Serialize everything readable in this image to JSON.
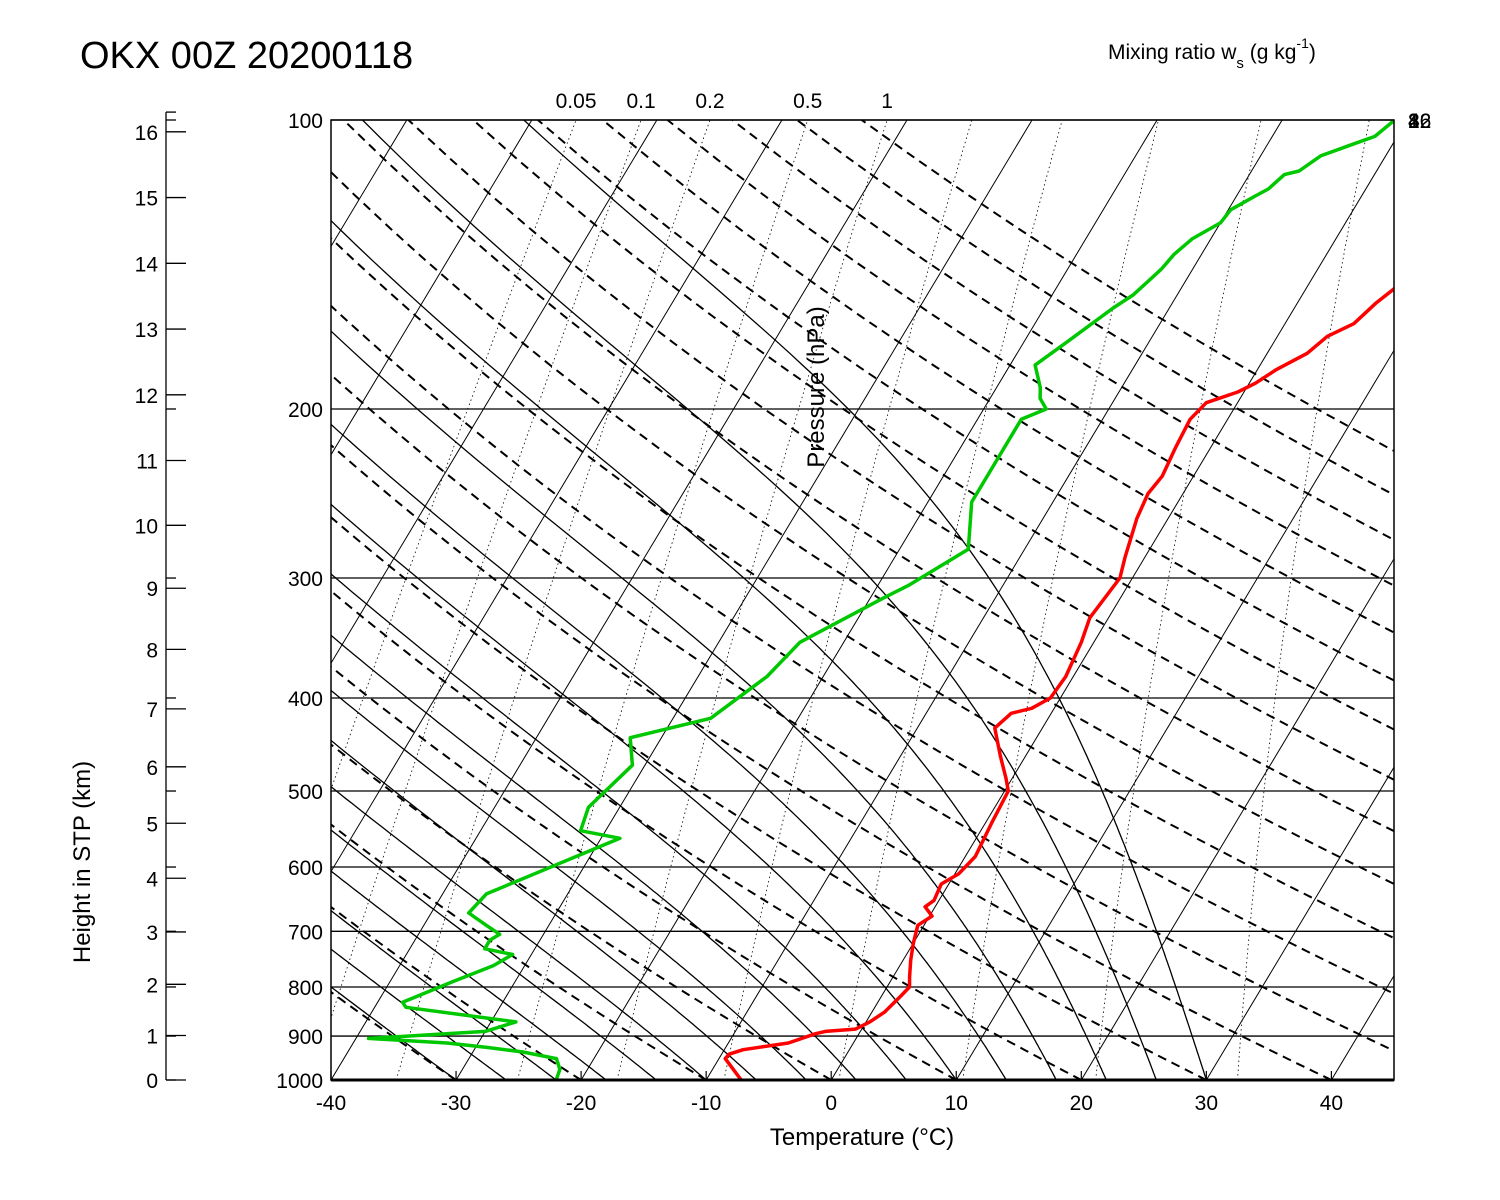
{
  "chart_data": {
    "type": "line",
    "title": "OKX 00Z 20200118",
    "xlabel": "Temperature (°C)",
    "ylabel": "Pressure (hPa)",
    "y2label": "Height in STP (km)",
    "top_label_prefix": "Mixing ratio w",
    "top_label_sub": "s",
    "top_label_mid": " (g kg",
    "top_label_sup": "-1",
    "top_label_end": ")",
    "xlim": [
      -40,
      45
    ],
    "ylim": [
      1000,
      100
    ],
    "x_ticks": [
      "-40",
      "-30",
      "-20",
      "-10",
      "0",
      "10",
      "20",
      "30",
      "40"
    ],
    "pressure_ticks": [
      "100",
      "200",
      "300",
      "400",
      "500",
      "600",
      "700",
      "800",
      "900",
      "1000"
    ],
    "height_ticks": [
      "0",
      "1",
      "2",
      "3",
      "4",
      "5",
      "6",
      "7",
      "8",
      "9",
      "10",
      "11",
      "12",
      "13",
      "14",
      "15",
      "16"
    ],
    "mixing_ratio_top_labels": [
      "0.05",
      "0.1",
      "0.2",
      "0.5",
      "1"
    ],
    "mixing_ratio_right_labels": [
      "2",
      "4",
      "8",
      "16",
      "32"
    ],
    "series": [
      {
        "name": "",
        "color": "#ff0000",
        "points": [
          [
            -7.2,
            1000
          ],
          [
            -8.8,
            965
          ],
          [
            -9.5,
            950
          ],
          [
            -9.4,
            940
          ],
          [
            -8.5,
            930
          ],
          [
            -5.2,
            915
          ],
          [
            -3.5,
            895
          ],
          [
            -2.8,
            890
          ],
          [
            -0.5,
            885
          ],
          [
            0.3,
            870
          ],
          [
            1.0,
            850
          ],
          [
            1.5,
            820
          ],
          [
            1.8,
            800
          ],
          [
            1.3,
            780
          ],
          [
            0.6,
            750
          ],
          [
            0.0,
            720
          ],
          [
            -0.5,
            690
          ],
          [
            0.2,
            675
          ],
          [
            -0.8,
            660
          ],
          [
            -0.4,
            650
          ],
          [
            -0.6,
            625
          ],
          [
            0.3,
            610
          ],
          [
            0.8,
            585
          ],
          [
            0.5,
            540
          ],
          [
            0.3,
            500
          ],
          [
            -0.5,
            485
          ],
          [
            -2.0,
            460
          ],
          [
            -3.8,
            430
          ],
          [
            -3.2,
            415
          ],
          [
            -1.8,
            410
          ],
          [
            -0.8,
            400
          ],
          [
            -0.6,
            380
          ],
          [
            -1.0,
            350
          ],
          [
            -1.5,
            330
          ],
          [
            -1.0,
            300
          ],
          [
            -1.6,
            285
          ],
          [
            -2.5,
            260
          ],
          [
            -2.8,
            245
          ],
          [
            -2.5,
            235
          ],
          [
            -2.8,
            220
          ],
          [
            -3.0,
            205
          ],
          [
            -2.5,
            197
          ],
          [
            -0.5,
            192
          ],
          [
            0.5,
            188
          ],
          [
            1.5,
            182
          ],
          [
            3.2,
            175
          ],
          [
            4.0,
            168
          ],
          [
            5.5,
            163
          ],
          [
            6.3,
            155
          ],
          [
            7.8,
            145
          ],
          [
            8.5,
            140
          ],
          [
            10.0,
            138
          ],
          [
            12.5,
            135
          ],
          [
            13.0,
            130
          ],
          [
            15.0,
            125
          ],
          [
            15.0,
            120
          ],
          [
            17.5,
            118
          ],
          [
            19.5,
            113
          ],
          [
            20.5,
            111
          ],
          [
            22.0,
            108
          ],
          [
            26.0,
            104
          ],
          [
            27.5,
            100
          ]
        ]
      },
      {
        "name": "",
        "color": "#00c800",
        "points": [
          [
            -22.0,
            1000
          ],
          [
            -22.2,
            975
          ],
          [
            -23.0,
            950
          ],
          [
            -26.0,
            935
          ],
          [
            -29.0,
            925
          ],
          [
            -32.5,
            915
          ],
          [
            -39.0,
            905
          ],
          [
            -36.0,
            900
          ],
          [
            -30.0,
            890
          ],
          [
            -28.0,
            870
          ],
          [
            -37.5,
            840
          ],
          [
            -38.0,
            830
          ],
          [
            -35.0,
            790
          ],
          [
            -32.5,
            760
          ],
          [
            -31.5,
            740
          ],
          [
            -34.0,
            730
          ],
          [
            -34.0,
            715
          ],
          [
            -33.5,
            705
          ],
          [
            -35.0,
            690
          ],
          [
            -37.0,
            670
          ],
          [
            -36.5,
            640
          ],
          [
            -28.5,
            560
          ],
          [
            -32.0,
            550
          ],
          [
            -32.5,
            520
          ],
          [
            -31.0,
            470
          ],
          [
            -32.5,
            440
          ],
          [
            -27.0,
            420
          ],
          [
            -24.5,
            380
          ],
          [
            -23.5,
            350
          ],
          [
            -19.0,
            315
          ],
          [
            -17.5,
            305
          ],
          [
            -14.5,
            280
          ],
          [
            -16.5,
            250
          ],
          [
            -16.5,
            225
          ],
          [
            -16.5,
            205
          ],
          [
            -15.0,
            200
          ],
          [
            -16.0,
            195
          ],
          [
            -16.5,
            190
          ],
          [
            -18.0,
            180
          ],
          [
            -16.5,
            170
          ],
          [
            -14.5,
            157
          ],
          [
            -13.5,
            152
          ],
          [
            -12.5,
            143
          ],
          [
            -12.2,
            138
          ],
          [
            -11.5,
            133
          ],
          [
            -10.0,
            128
          ],
          [
            -9.8,
            124
          ],
          [
            -8.5,
            120
          ],
          [
            -7.8,
            118
          ],
          [
            -7.2,
            114
          ],
          [
            -6.2,
            113
          ],
          [
            -5.2,
            109
          ],
          [
            -3.2,
            106
          ],
          [
            -1.8,
            104
          ],
          [
            -1.0,
            100
          ]
        ]
      }
    ],
    "grid": true,
    "legend": "none"
  }
}
